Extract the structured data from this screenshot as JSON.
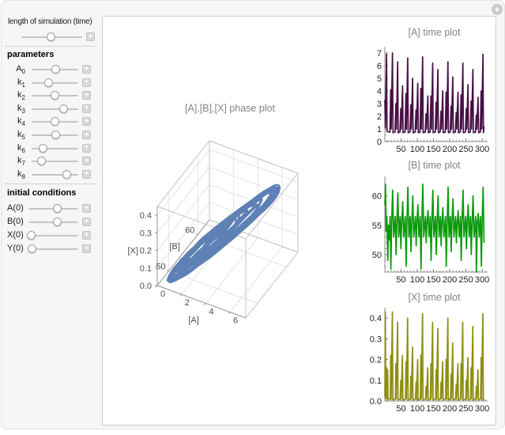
{
  "controls": {
    "plus_label": "+",
    "options_button_label": "+",
    "time": {
      "label": "length of simulation (time)",
      "value": 0.49
    },
    "parameters": {
      "heading": "parameters",
      "sliders": [
        {
          "id": "A0",
          "base": "A",
          "sub": "0",
          "value": 0.51
        },
        {
          "id": "k1",
          "base": "k",
          "sub": "1",
          "value": 0.37
        },
        {
          "id": "k2",
          "base": "k",
          "sub": "2",
          "value": 0.5
        },
        {
          "id": "k3",
          "base": "k",
          "sub": "3",
          "value": 0.69
        },
        {
          "id": "k4",
          "base": "k",
          "sub": "4",
          "value": 0.5
        },
        {
          "id": "k5",
          "base": "k",
          "sub": "5",
          "value": 0.51
        },
        {
          "id": "k6",
          "base": "k",
          "sub": "6",
          "value": 0.25
        },
        {
          "id": "k7",
          "base": "k",
          "sub": "7",
          "value": 0.22
        },
        {
          "id": "k8",
          "base": "k",
          "sub": "8",
          "value": 0.76
        }
      ]
    },
    "initial_conditions": {
      "heading": "initial conditions",
      "sliders": [
        {
          "id": "A0-init",
          "label": "A(0)",
          "value": 0.58
        },
        {
          "id": "B0-init",
          "label": "B(0)",
          "value": 0.58
        },
        {
          "id": "X0-init",
          "label": "X(0)",
          "value": 0.05
        },
        {
          "id": "Y0-init",
          "label": "Y(0)",
          "value": 0.07
        }
      ]
    }
  },
  "chart_data": [
    {
      "id": "phase",
      "type": "line3d",
      "title": "[A],[B],[X] phase plot",
      "color": "#5E81B5",
      "axes": {
        "A": {
          "label": "[A]",
          "ticks": [
            0,
            2,
            4,
            6
          ],
          "range": [
            0,
            7.3
          ]
        },
        "B": {
          "label": "[B]",
          "ticks": [
            50,
            60
          ],
          "range": [
            46,
            64
          ]
        },
        "X": {
          "label": "[X]",
          "ticks": [
            "0.0",
            "0.1",
            "0.2",
            "0.3",
            "0.4"
          ],
          "range": [
            0,
            0.45
          ]
        }
      },
      "loop_scales": [
        0.3,
        0.52,
        0.95,
        1.0,
        0.42,
        0.72,
        0.97,
        0.58,
        0.36,
        0.88,
        1.0,
        0.48,
        0.78,
        0.96,
        0.4,
        0.63,
        0.92,
        0.54,
        0.99,
        0.68,
        0.34,
        0.83,
        1.0,
        0.6
      ]
    },
    {
      "id": "A",
      "type": "line",
      "title": "[A] time plot",
      "color": "#471046",
      "xlim": [
        0,
        312
      ],
      "ylim": [
        0,
        7.25
      ],
      "xticks": [
        50,
        100,
        150,
        200,
        250,
        300
      ],
      "yticks": [
        "0",
        "1",
        "2",
        "3",
        "4",
        "5",
        "6",
        "7"
      ],
      "points": [
        [
          0,
          3.3
        ],
        [
          1.5,
          1.1
        ],
        [
          5,
          6.9
        ],
        [
          6.5,
          0.8
        ],
        [
          15.5,
          0.75
        ],
        [
          18,
          4.1
        ],
        [
          19.5,
          1.0
        ],
        [
          23.5,
          7.0
        ],
        [
          25,
          0.7
        ],
        [
          31.5,
          0.75
        ],
        [
          34,
          3.0
        ],
        [
          35.5,
          1.0
        ],
        [
          39.5,
          6.3
        ],
        [
          41,
          0.7
        ],
        [
          46.5,
          0.75
        ],
        [
          49,
          2.6
        ],
        [
          50.5,
          1.0
        ],
        [
          54.5,
          4.4
        ],
        [
          56,
          0.7
        ],
        [
          62.5,
          0.75
        ],
        [
          65,
          3.8
        ],
        [
          66.5,
          1.0
        ],
        [
          70.5,
          6.6
        ],
        [
          72,
          0.7
        ],
        [
          77.5,
          0.75
        ],
        [
          80,
          2.9
        ],
        [
          81.5,
          1.0
        ],
        [
          85.5,
          5.0
        ],
        [
          87,
          0.7
        ],
        [
          93.5,
          0.75
        ],
        [
          96,
          2.5
        ],
        [
          97.5,
          1.0
        ],
        [
          101.5,
          4.6
        ],
        [
          103,
          0.7
        ],
        [
          108.5,
          0.75
        ],
        [
          111,
          4.2
        ],
        [
          112.5,
          1.0
        ],
        [
          116.5,
          6.7
        ],
        [
          118,
          0.7
        ],
        [
          124.5,
          0.75
        ],
        [
          127,
          2.2
        ],
        [
          128.5,
          1.0
        ],
        [
          132.5,
          3.6
        ],
        [
          134,
          0.7
        ],
        [
          139.5,
          0.75
        ],
        [
          142,
          3.6
        ],
        [
          143.5,
          1.0
        ],
        [
          147.5,
          6.2
        ],
        [
          149,
          0.7
        ],
        [
          155.5,
          0.75
        ],
        [
          158,
          3.1
        ],
        [
          159.5,
          1.0
        ],
        [
          163.5,
          5.7
        ],
        [
          165,
          0.7
        ],
        [
          170.5,
          0.75
        ],
        [
          173,
          2.4
        ],
        [
          174.5,
          1.0
        ],
        [
          178.5,
          4.0
        ],
        [
          180,
          0.7
        ],
        [
          186.5,
          0.75
        ],
        [
          189,
          3.9
        ],
        [
          190.5,
          1.0
        ],
        [
          194.5,
          6.3
        ],
        [
          196,
          0.7
        ],
        [
          201.5,
          0.75
        ],
        [
          204,
          2.8
        ],
        [
          205.5,
          1.0
        ],
        [
          209.5,
          5.1
        ],
        [
          211,
          0.7
        ],
        [
          217.5,
          0.75
        ],
        [
          220,
          2.3
        ],
        [
          221.5,
          1.0
        ],
        [
          225.5,
          3.9
        ],
        [
          227,
          0.7
        ],
        [
          232.5,
          0.75
        ],
        [
          235,
          3.7
        ],
        [
          236.5,
          1.0
        ],
        [
          240.5,
          6.2
        ],
        [
          242,
          0.7
        ],
        [
          248.5,
          0.75
        ],
        [
          251,
          2.6
        ],
        [
          252.5,
          1.0
        ],
        [
          256.5,
          4.5
        ],
        [
          258,
          0.7
        ],
        [
          263.5,
          0.75
        ],
        [
          266,
          3.2
        ],
        [
          267.5,
          1.0
        ],
        [
          271.5,
          5.7
        ],
        [
          273,
          0.7
        ],
        [
          279.5,
          0.75
        ],
        [
          282,
          2.1
        ],
        [
          283.5,
          1.0
        ],
        [
          287.5,
          3.5
        ],
        [
          289,
          0.7
        ],
        [
          294.5,
          0.75
        ],
        [
          297,
          4.0
        ],
        [
          298.5,
          1.0
        ],
        [
          302.5,
          6.9
        ],
        [
          304,
          0.7
        ],
        [
          306,
          1.2
        ]
      ]
    },
    {
      "id": "B",
      "type": "line",
      "title": "[B] time plot",
      "color": "#0a9a0a",
      "xlim": [
        0,
        312
      ],
      "ylim": [
        47,
        62.8
      ],
      "xticks": [
        50,
        100,
        150,
        200,
        250,
        300
      ],
      "yticks": [
        "50",
        "55",
        "60"
      ],
      "points": [
        [
          0,
          58.5
        ],
        [
          2,
          62
        ],
        [
          4,
          54
        ],
        [
          6,
          56.5
        ],
        [
          9,
          49
        ],
        [
          11.5,
          55
        ],
        [
          13.5,
          52.5
        ],
        [
          16,
          56.5
        ],
        [
          18.5,
          47.5
        ],
        [
          21,
          55.5
        ],
        [
          24,
          61
        ],
        [
          27,
          53
        ],
        [
          32,
          56.5
        ],
        [
          34.5,
          50
        ],
        [
          37,
          55.5
        ],
        [
          40,
          60.5
        ],
        [
          43,
          53
        ],
        [
          47,
          56.5
        ],
        [
          49.5,
          51
        ],
        [
          52,
          55.5
        ],
        [
          55,
          59
        ],
        [
          58,
          53
        ],
        [
          63,
          56.5
        ],
        [
          65.5,
          48
        ],
        [
          68,
          55.5
        ],
        [
          71,
          61.5
        ],
        [
          74,
          53
        ],
        [
          78,
          56.5
        ],
        [
          80.5,
          50.5
        ],
        [
          83,
          55.5
        ],
        [
          86,
          60
        ],
        [
          89,
          53
        ],
        [
          94,
          56.5
        ],
        [
          96.5,
          51.5
        ],
        [
          99,
          55.5
        ],
        [
          102,
          58.5
        ],
        [
          105,
          53
        ],
        [
          109,
          56.5
        ],
        [
          111.5,
          47.5
        ],
        [
          114,
          55.5
        ],
        [
          117,
          62
        ],
        [
          120,
          53
        ],
        [
          125,
          56.5
        ],
        [
          127.5,
          52
        ],
        [
          130,
          55.5
        ],
        [
          133,
          57.5
        ],
        [
          136,
          53
        ],
        [
          140,
          56.5
        ],
        [
          142.5,
          49
        ],
        [
          145,
          55.5
        ],
        [
          148,
          61
        ],
        [
          151,
          53
        ],
        [
          156,
          56.5
        ],
        [
          158.5,
          50
        ],
        [
          161,
          55.5
        ],
        [
          164,
          60
        ],
        [
          167,
          53
        ],
        [
          171,
          56.5
        ],
        [
          173.5,
          51.5
        ],
        [
          176,
          55.5
        ],
        [
          179,
          58
        ],
        [
          182,
          53
        ],
        [
          187,
          56.5
        ],
        [
          189.5,
          48
        ],
        [
          192,
          55.5
        ],
        [
          195,
          61.5
        ],
        [
          198,
          53
        ],
        [
          202,
          56.5
        ],
        [
          204.5,
          50.5
        ],
        [
          207,
          55.5
        ],
        [
          210,
          59.5
        ],
        [
          213,
          53
        ],
        [
          218,
          56.5
        ],
        [
          220.5,
          52
        ],
        [
          223,
          55.5
        ],
        [
          226,
          57.5
        ],
        [
          229,
          53
        ],
        [
          233,
          56.5
        ],
        [
          235.5,
          49
        ],
        [
          238,
          55.5
        ],
        [
          241,
          61
        ],
        [
          244,
          53
        ],
        [
          249,
          56.5
        ],
        [
          251.5,
          51
        ],
        [
          254,
          55.5
        ],
        [
          257,
          58.5
        ],
        [
          260,
          53
        ],
        [
          264,
          56.5
        ],
        [
          266.5,
          50
        ],
        [
          269,
          55.5
        ],
        [
          272,
          60
        ],
        [
          275,
          53
        ],
        [
          280,
          56.5
        ],
        [
          282.5,
          47
        ],
        [
          285,
          55.5
        ],
        [
          288,
          57
        ],
        [
          291,
          53
        ],
        [
          295,
          56.5
        ],
        [
          297.5,
          48
        ],
        [
          300,
          55.5
        ],
        [
          303,
          61.5
        ],
        [
          306,
          52
        ]
      ]
    },
    {
      "id": "X",
      "type": "line",
      "title": "[X] time plot",
      "color": "#8e8e14",
      "xlim": [
        0,
        312
      ],
      "ylim": [
        0,
        0.435
      ],
      "xticks": [
        50,
        100,
        150,
        200,
        250,
        300
      ],
      "yticks": [
        "0.0",
        "0.1",
        "0.2",
        "0.3",
        "0.4"
      ],
      "points": [
        [
          0,
          0.02
        ],
        [
          1.5,
          0.43
        ],
        [
          3,
          0.01
        ],
        [
          5.5,
          0.16
        ],
        [
          6.8,
          0.01
        ],
        [
          8.5,
          0.15
        ],
        [
          9.8,
          0.005
        ],
        [
          16.5,
          0.01
        ],
        [
          18,
          0.22
        ],
        [
          19.2,
          0.01
        ],
        [
          23.2,
          0.43
        ],
        [
          24.6,
          0.005
        ],
        [
          32.5,
          0.01
        ],
        [
          34,
          0.18
        ],
        [
          35.2,
          0.01
        ],
        [
          39.2,
          0.38
        ],
        [
          40.6,
          0.005
        ],
        [
          47.5,
          0.01
        ],
        [
          49,
          0.1
        ],
        [
          50.2,
          0.01
        ],
        [
          54.2,
          0.22
        ],
        [
          55.6,
          0.005
        ],
        [
          63.5,
          0.01
        ],
        [
          65,
          0.19
        ],
        [
          66.2,
          0.01
        ],
        [
          70.2,
          0.4
        ],
        [
          71.6,
          0.005
        ],
        [
          78.5,
          0.01
        ],
        [
          80,
          0.12
        ],
        [
          81.2,
          0.01
        ],
        [
          85.2,
          0.26
        ],
        [
          86.6,
          0.005
        ],
        [
          94.5,
          0.01
        ],
        [
          96,
          0.09
        ],
        [
          97.2,
          0.01
        ],
        [
          101.2,
          0.2
        ],
        [
          102.6,
          0.005
        ],
        [
          109.5,
          0.01
        ],
        [
          111,
          0.22
        ],
        [
          112.2,
          0.01
        ],
        [
          116.2,
          0.42
        ],
        [
          117.6,
          0.005
        ],
        [
          125.5,
          0.01
        ],
        [
          127,
          0.07
        ],
        [
          128.2,
          0.01
        ],
        [
          132.2,
          0.16
        ],
        [
          133.6,
          0.005
        ],
        [
          140.5,
          0.01
        ],
        [
          142,
          0.18
        ],
        [
          143.2,
          0.01
        ],
        [
          147.2,
          0.38
        ],
        [
          148.6,
          0.005
        ],
        [
          156.5,
          0.01
        ],
        [
          158,
          0.15
        ],
        [
          159.2,
          0.01
        ],
        [
          163.2,
          0.35
        ],
        [
          164.6,
          0.005
        ],
        [
          171.5,
          0.01
        ],
        [
          173,
          0.09
        ],
        [
          174.2,
          0.01
        ],
        [
          178.2,
          0.19
        ],
        [
          179.6,
          0.005
        ],
        [
          187.5,
          0.01
        ],
        [
          189,
          0.2
        ],
        [
          190.2,
          0.01
        ],
        [
          194.2,
          0.4
        ],
        [
          195.6,
          0.005
        ],
        [
          202.5,
          0.01
        ],
        [
          204,
          0.13
        ],
        [
          205.2,
          0.01
        ],
        [
          209.2,
          0.28
        ],
        [
          210.6,
          0.005
        ],
        [
          218.5,
          0.01
        ],
        [
          220,
          0.08
        ],
        [
          221.2,
          0.01
        ],
        [
          225.2,
          0.18
        ],
        [
          226.6,
          0.005
        ],
        [
          233.5,
          0.01
        ],
        [
          235,
          0.18
        ],
        [
          236.2,
          0.01
        ],
        [
          240.2,
          0.38
        ],
        [
          241.6,
          0.005
        ],
        [
          249.5,
          0.01
        ],
        [
          251,
          0.1
        ],
        [
          252.2,
          0.01
        ],
        [
          256.2,
          0.21
        ],
        [
          257.6,
          0.005
        ],
        [
          264.5,
          0.01
        ],
        [
          266,
          0.16
        ],
        [
          267.2,
          0.01
        ],
        [
          271.2,
          0.36
        ],
        [
          272.6,
          0.005
        ],
        [
          280.5,
          0.01
        ],
        [
          282,
          0.07
        ],
        [
          283.2,
          0.01
        ],
        [
          287.2,
          0.15
        ],
        [
          288.6,
          0.005
        ],
        [
          295.5,
          0.01
        ],
        [
          297,
          0.21
        ],
        [
          298.2,
          0.01
        ],
        [
          302.2,
          0.42
        ],
        [
          303.6,
          0.005
        ],
        [
          306,
          0.01
        ]
      ]
    }
  ]
}
